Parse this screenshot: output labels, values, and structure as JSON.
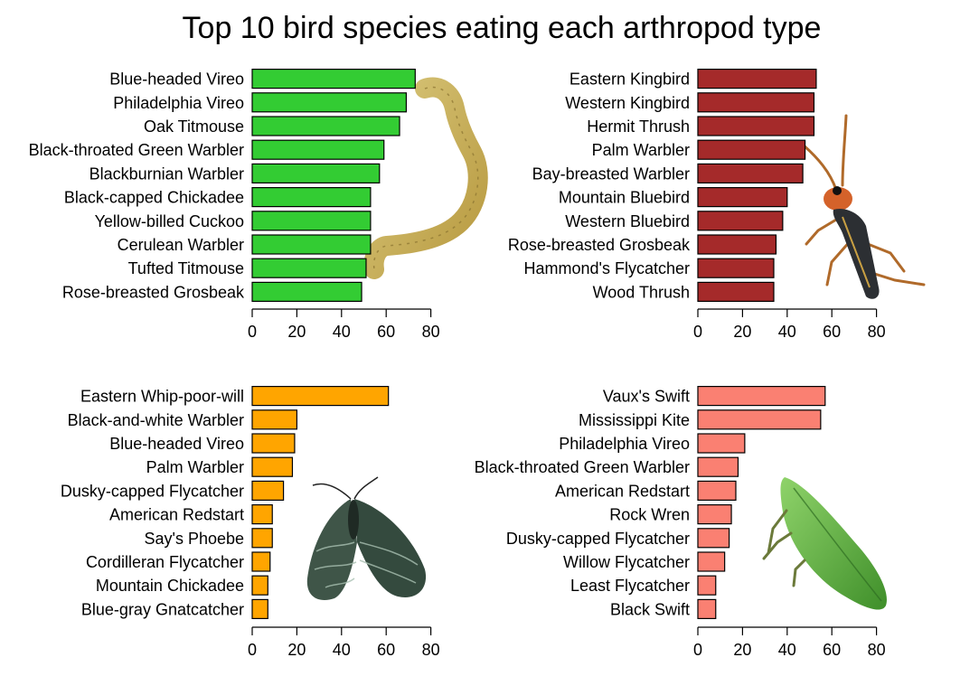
{
  "title": "Top 10 bird species eating each arthropod type",
  "chart_data": [
    {
      "type": "bar",
      "orientation": "horizontal",
      "panel": "top-left",
      "color": "#33cc33",
      "illustration": "caterpillar-icon",
      "categories": [
        "Blue-headed Vireo",
        "Philadelphia Vireo",
        "Oak Titmouse",
        "Black-throated Green Warbler",
        "Blackburnian Warbler",
        "Black-capped Chickadee",
        "Yellow-billed Cuckoo",
        "Cerulean Warbler",
        "Tufted Titmouse",
        "Rose-breasted Grosbeak"
      ],
      "values": [
        73,
        69,
        66,
        59,
        57,
        53,
        53,
        53,
        51,
        49
      ],
      "xlim": [
        0,
        80
      ],
      "ticks": [
        0,
        20,
        40,
        60,
        80
      ]
    },
    {
      "type": "bar",
      "orientation": "horizontal",
      "panel": "top-right",
      "color": "#a52a2a",
      "illustration": "beetle-icon",
      "categories": [
        "Eastern Kingbird",
        "Western Kingbird",
        "Hermit Thrush",
        "Palm Warbler",
        "Bay-breasted Warbler",
        "Mountain Bluebird",
        "Western Bluebird",
        "Rose-breasted Grosbeak",
        "Hammond's Flycatcher",
        "Wood Thrush"
      ],
      "values": [
        53,
        52,
        52,
        48,
        47,
        40,
        38,
        35,
        34,
        34
      ],
      "xlim": [
        0,
        80
      ],
      "ticks": [
        0,
        20,
        40,
        60,
        80
      ]
    },
    {
      "type": "bar",
      "orientation": "horizontal",
      "panel": "bottom-left",
      "color": "#ffa500",
      "illustration": "moth-icon",
      "categories": [
        "Eastern Whip-poor-will",
        "Black-and-white Warbler",
        "Blue-headed Vireo",
        "Palm Warbler",
        "Dusky-capped Flycatcher",
        "American Redstart",
        "Say's Phoebe",
        "Cordilleran Flycatcher",
        "Mountain Chickadee",
        "Blue-gray Gnatcatcher"
      ],
      "values": [
        61,
        20,
        19,
        18,
        14,
        9,
        9,
        8,
        7,
        7
      ],
      "xlim": [
        0,
        80
      ],
      "ticks": [
        0,
        20,
        40,
        60,
        80
      ]
    },
    {
      "type": "bar",
      "orientation": "horizontal",
      "panel": "bottom-right",
      "color": "#fa8072",
      "illustration": "leafhopper-icon",
      "categories": [
        "Vaux's Swift",
        "Mississippi Kite",
        "Philadelphia Vireo",
        "Black-throated Green Warbler",
        "American Redstart",
        "Rock Wren",
        "Dusky-capped Flycatcher",
        "Willow Flycatcher",
        "Least Flycatcher",
        "Black Swift"
      ],
      "values": [
        57,
        55,
        21,
        18,
        17,
        15,
        14,
        12,
        8,
        8
      ],
      "xlim": [
        0,
        80
      ],
      "ticks": [
        0,
        20,
        40,
        60,
        80
      ]
    }
  ]
}
